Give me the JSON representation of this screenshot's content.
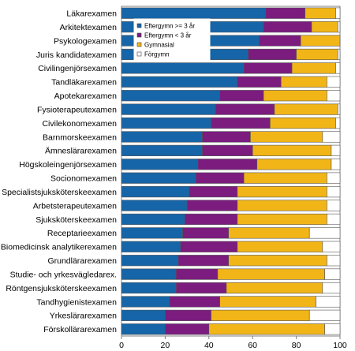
{
  "chart_data": {
    "type": "bar",
    "orientation": "horizontal",
    "stacked": true,
    "title": "",
    "xlabel": "",
    "ylabel": "",
    "xlim": [
      0,
      100
    ],
    "xticks": [
      0,
      20,
      40,
      60,
      80,
      100
    ],
    "grid": false,
    "legend_position": "top-center",
    "categories": [
      "Läkarexamen",
      "Arkitektexamen",
      "Psykologexamen",
      "Juris kandidatexamen",
      "Civilingenjörsexamen",
      "Tandläkarexamen",
      "Apotekarexamen",
      "Fysioterapeutexamen",
      "Civilekonomexamen",
      "Barnmorskeexamen",
      "Ämneslärarexamen",
      "Högskoleingenjörsexamen",
      "Socionomexamen",
      "Specialistsjuksköterskeexamen",
      "Arbetsterapeutexamen",
      "Sjuksköterskeexamen",
      "Receptarieexamen",
      "Biomedicinsk analytikerexamen",
      "Grundlärarexamen",
      "Studie- och yrkesvägledarex.",
      "Röntgensjuksköterskeexamen",
      "Tandhygienistexamen",
      "Yrkeslärarexamen",
      "Förskollärarexamen"
    ],
    "series": [
      {
        "name": "Eftergymn >= 3 år",
        "color": "#1565a8",
        "values": [
          66,
          65,
          63,
          58,
          56,
          53,
          45,
          43,
          41,
          37,
          37,
          35,
          34,
          31,
          30,
          29,
          28,
          27,
          26,
          25,
          25,
          22,
          20,
          20
        ]
      },
      {
        "name": "Eftergymn < 3 år",
        "color": "#7b1c7e",
        "values": [
          18,
          22,
          19,
          22,
          22,
          20,
          20,
          27,
          27,
          22,
          23,
          27,
          22,
          22,
          23,
          24,
          21,
          26,
          23,
          19,
          23,
          23,
          21,
          20
        ]
      },
      {
        "name": "Gymnasial",
        "color": "#f2b517",
        "values": [
          14,
          12,
          18,
          19,
          20,
          21,
          29,
          29,
          30,
          33,
          36,
          34,
          38,
          41,
          41,
          41,
          37,
          39,
          45,
          49,
          44,
          44,
          45,
          53
        ]
      },
      {
        "name": "Förgymn",
        "color": "#ffffff",
        "values": [
          2,
          1,
          0,
          1,
          2,
          6,
          6,
          1,
          2,
          8,
          4,
          4,
          6,
          6,
          6,
          6,
          14,
          8,
          6,
          7,
          8,
          11,
          14,
          7
        ]
      }
    ]
  }
}
